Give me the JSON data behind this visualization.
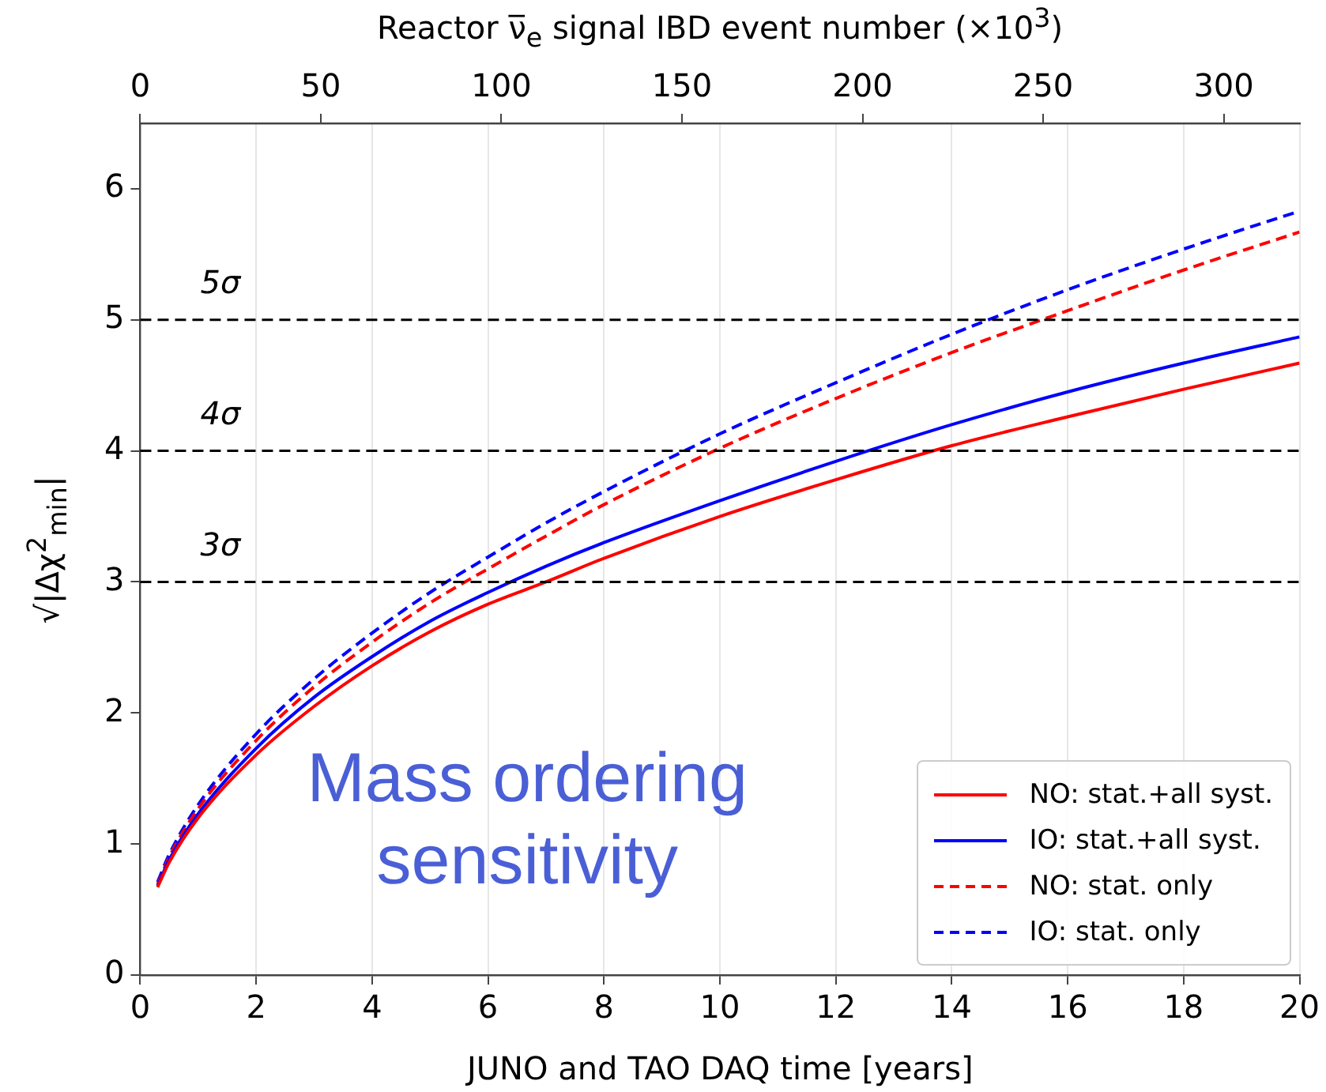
{
  "chart_data": {
    "type": "line",
    "xlabel": "JUNO and TAO DAQ time [years]",
    "ylabel": "√|Δχ$^{2}$$_{min}$|",
    "x2label": "Reactor ν̅$_{e}$ signal IBD event number (×10$^{3}$)",
    "xlim": [
      0,
      20
    ],
    "xticks": [
      0,
      2,
      4,
      6,
      8,
      10,
      12,
      14,
      16,
      18,
      20
    ],
    "ylim": [
      0,
      6.5
    ],
    "yticks": [
      0,
      1,
      2,
      3,
      4,
      5,
      6
    ],
    "x2lim": [
      0,
      321
    ],
    "x2ticks": [
      0,
      50,
      100,
      150,
      200,
      250,
      300
    ],
    "x": [
      0.3,
      0.5,
      1,
      2,
      3,
      4,
      5,
      6,
      7,
      8,
      10,
      12,
      14,
      16,
      18,
      20
    ],
    "series": [
      {
        "name": "NO: stat.+all syst.",
        "color": "#ff0000",
        "line_style": "solid",
        "values": [
          0.67,
          0.86,
          1.2,
          1.68,
          2.05,
          2.36,
          2.62,
          2.83,
          3.0,
          3.18,
          3.5,
          3.78,
          4.04,
          4.26,
          4.47,
          4.67
        ]
      },
      {
        "name": "IO: stat.+all syst.",
        "color": "#0000ff",
        "line_style": "solid",
        "values": [
          0.68,
          0.88,
          1.23,
          1.73,
          2.12,
          2.43,
          2.7,
          2.92,
          3.12,
          3.3,
          3.62,
          3.92,
          4.2,
          4.45,
          4.67,
          4.87
        ]
      },
      {
        "name": "NO: stat. only",
        "color": "#ff0000",
        "line_style": "dashed",
        "values": [
          0.69,
          0.9,
          1.27,
          1.79,
          2.2,
          2.54,
          2.84,
          3.1,
          3.35,
          3.59,
          4.02,
          4.4,
          4.75,
          5.07,
          5.38,
          5.67
        ]
      },
      {
        "name": "IO: stat. only",
        "color": "#0000ff",
        "line_style": "dashed",
        "values": [
          0.71,
          0.92,
          1.3,
          1.84,
          2.26,
          2.61,
          2.92,
          3.19,
          3.45,
          3.69,
          4.13,
          4.52,
          4.89,
          5.23,
          5.54,
          5.83
        ]
      }
    ],
    "ref_lines": [
      {
        "axis": "y",
        "value": 3,
        "label": "3σ",
        "color": "#000000",
        "line_style": "dashed"
      },
      {
        "axis": "y",
        "value": 4,
        "label": "4σ",
        "color": "#000000",
        "line_style": "dashed"
      },
      {
        "axis": "y",
        "value": 5,
        "label": "5σ",
        "color": "#000000",
        "line_style": "dashed"
      }
    ],
    "annotations": [
      "Mass ordering\nsensitivity"
    ],
    "grid": "x",
    "legend": "bottom right",
    "marker": "none"
  }
}
